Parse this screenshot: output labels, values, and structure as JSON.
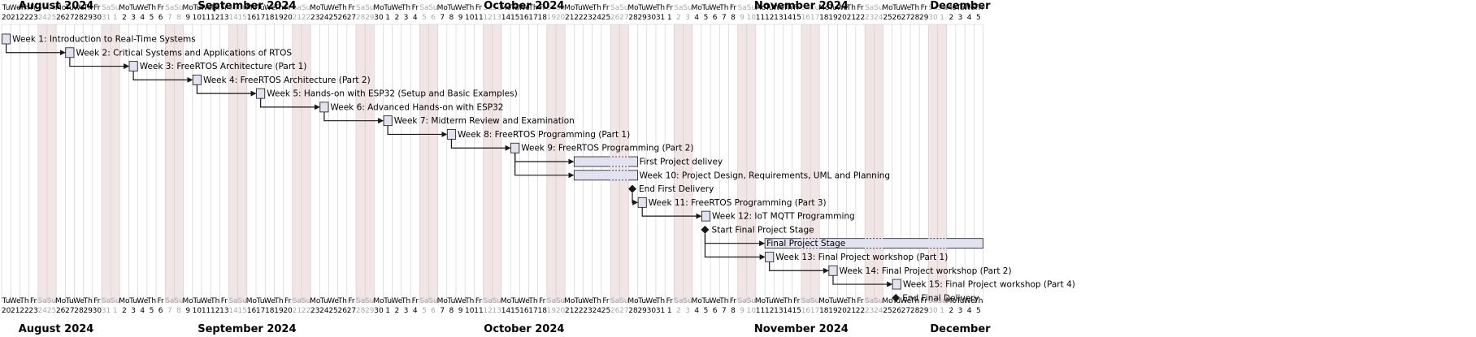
{
  "calendar": {
    "months": [
      {
        "label": "August 2024"
      },
      {
        "label": "September 2024"
      },
      {
        "label": "October 2024"
      },
      {
        "label": "November 2024"
      },
      {
        "label": "December"
      }
    ],
    "days": [
      {
        "dow": "Tu",
        "dom": "20"
      },
      {
        "dow": "We",
        "dom": "21"
      },
      {
        "dow": "Th",
        "dom": "22"
      },
      {
        "dow": "Fr",
        "dom": "23"
      },
      {
        "dow": "Sa",
        "dom": "24"
      },
      {
        "dow": "Su",
        "dom": "25"
      },
      {
        "dow": "Mo",
        "dom": "26"
      },
      {
        "dow": "Tu",
        "dom": "27"
      },
      {
        "dow": "We",
        "dom": "28"
      },
      {
        "dow": "Th",
        "dom": "29"
      },
      {
        "dow": "Fr",
        "dom": "30"
      },
      {
        "dow": "Sa",
        "dom": "31"
      },
      {
        "dow": "Su",
        "dom": "1"
      },
      {
        "dow": "Mo",
        "dom": "2"
      },
      {
        "dow": "Tu",
        "dom": "3"
      },
      {
        "dow": "We",
        "dom": "4"
      },
      {
        "dow": "Th",
        "dom": "5"
      },
      {
        "dow": "Fr",
        "dom": "6"
      },
      {
        "dow": "Sa",
        "dom": "7"
      },
      {
        "dow": "Su",
        "dom": "8"
      },
      {
        "dow": "Mo",
        "dom": "9"
      },
      {
        "dow": "Tu",
        "dom": "10"
      },
      {
        "dow": "We",
        "dom": "11"
      },
      {
        "dow": "Th",
        "dom": "12"
      },
      {
        "dow": "Fr",
        "dom": "13"
      },
      {
        "dow": "Sa",
        "dom": "14"
      },
      {
        "dow": "Su",
        "dom": "15"
      },
      {
        "dow": "Mo",
        "dom": "16"
      },
      {
        "dow": "Tu",
        "dom": "17"
      },
      {
        "dow": "We",
        "dom": "18"
      },
      {
        "dow": "Th",
        "dom": "19"
      },
      {
        "dow": "Fr",
        "dom": "20"
      },
      {
        "dow": "Sa",
        "dom": "21"
      },
      {
        "dow": "Su",
        "dom": "22"
      },
      {
        "dow": "Mo",
        "dom": "23"
      },
      {
        "dow": "Tu",
        "dom": "24"
      },
      {
        "dow": "We",
        "dom": "25"
      },
      {
        "dow": "Th",
        "dom": "26"
      },
      {
        "dow": "Fr",
        "dom": "27"
      },
      {
        "dow": "Sa",
        "dom": "28"
      },
      {
        "dow": "Su",
        "dom": "29"
      },
      {
        "dow": "Mo",
        "dom": "30"
      },
      {
        "dow": "Tu",
        "dom": "1"
      },
      {
        "dow": "We",
        "dom": "2"
      },
      {
        "dow": "Th",
        "dom": "3"
      },
      {
        "dow": "Fr",
        "dom": "4"
      },
      {
        "dow": "Sa",
        "dom": "5"
      },
      {
        "dow": "Su",
        "dom": "6"
      },
      {
        "dow": "Mo",
        "dom": "7"
      },
      {
        "dow": "Tu",
        "dom": "8"
      },
      {
        "dow": "We",
        "dom": "9"
      },
      {
        "dow": "Th",
        "dom": "10"
      },
      {
        "dow": "Fr",
        "dom": "11"
      },
      {
        "dow": "Sa",
        "dom": "12"
      },
      {
        "dow": "Su",
        "dom": "13"
      },
      {
        "dow": "Mo",
        "dom": "14"
      },
      {
        "dow": "Tu",
        "dom": "15"
      },
      {
        "dow": "We",
        "dom": "16"
      },
      {
        "dow": "Th",
        "dom": "17"
      },
      {
        "dow": "Fr",
        "dom": "18"
      },
      {
        "dow": "Sa",
        "dom": "19"
      },
      {
        "dow": "Su",
        "dom": "20"
      },
      {
        "dow": "Mo",
        "dom": "21"
      },
      {
        "dow": "Tu",
        "dom": "22"
      },
      {
        "dow": "We",
        "dom": "23"
      },
      {
        "dow": "Th",
        "dom": "24"
      },
      {
        "dow": "Fr",
        "dom": "25"
      },
      {
        "dow": "Sa",
        "dom": "26"
      },
      {
        "dow": "Su",
        "dom": "27"
      },
      {
        "dow": "Mo",
        "dom": "28"
      },
      {
        "dow": "Tu",
        "dom": "29"
      },
      {
        "dow": "We",
        "dom": "30"
      },
      {
        "dow": "Th",
        "dom": "31"
      },
      {
        "dow": "Fr",
        "dom": "1"
      },
      {
        "dow": "Sa",
        "dom": "2"
      },
      {
        "dow": "Su",
        "dom": "3"
      },
      {
        "dow": "Mo",
        "dom": "4"
      },
      {
        "dow": "Tu",
        "dom": "5"
      },
      {
        "dow": "We",
        "dom": "6"
      },
      {
        "dow": "Th",
        "dom": "7"
      },
      {
        "dow": "Fr",
        "dom": "8"
      },
      {
        "dow": "Sa",
        "dom": "9"
      },
      {
        "dow": "Su",
        "dom": "10"
      },
      {
        "dow": "Mo",
        "dom": "11"
      },
      {
        "dow": "Tu",
        "dom": "12"
      },
      {
        "dow": "We",
        "dom": "13"
      },
      {
        "dow": "Th",
        "dom": "14"
      },
      {
        "dow": "Fr",
        "dom": "15"
      },
      {
        "dow": "Sa",
        "dom": "16"
      },
      {
        "dow": "Su",
        "dom": "17"
      },
      {
        "dow": "Mo",
        "dom": "18"
      },
      {
        "dow": "Tu",
        "dom": "19"
      },
      {
        "dow": "We",
        "dom": "20"
      },
      {
        "dow": "Th",
        "dom": "21"
      },
      {
        "dow": "Fr",
        "dom": "22"
      },
      {
        "dow": "Sa",
        "dom": "23"
      },
      {
        "dow": "Su",
        "dom": "24"
      },
      {
        "dow": "Mo",
        "dom": "25"
      },
      {
        "dow": "Tu",
        "dom": "26"
      },
      {
        "dow": "We",
        "dom": "27"
      },
      {
        "dow": "Th",
        "dom": "28"
      },
      {
        "dow": "Fr",
        "dom": "29"
      },
      {
        "dow": "Sa",
        "dom": "30"
      },
      {
        "dow": "Su",
        "dom": "1"
      },
      {
        "dow": "Mo",
        "dom": "2"
      },
      {
        "dow": "Tu",
        "dom": "3"
      },
      {
        "dow": "We",
        "dom": "4"
      },
      {
        "dow": "Th",
        "dom": "5"
      }
    ]
  },
  "tasks": [
    {
      "label": "Week 1: Introduction to Real-Time Systems",
      "start": "2024-08-20",
      "end": "2024-08-20",
      "kind": "task"
    },
    {
      "label": "Week 2: Critical Systems and Applications of RTOS",
      "start": "2024-08-27",
      "end": "2024-08-27",
      "kind": "task"
    },
    {
      "label": "Week 3: FreeRTOS Architecture (Part 1)",
      "start": "2024-09-03",
      "end": "2024-09-03",
      "kind": "task"
    },
    {
      "label": "Week 4: FreeRTOS Architecture (Part 2)",
      "start": "2024-09-10",
      "end": "2024-09-10",
      "kind": "task"
    },
    {
      "label": "Week 5: Hands-on with ESP32 (Setup and Basic Examples)",
      "start": "2024-09-17",
      "end": "2024-09-17",
      "kind": "task"
    },
    {
      "label": "Week 6: Advanced Hands-on with ESP32",
      "start": "2024-09-24",
      "end": "2024-09-24",
      "kind": "task"
    },
    {
      "label": "Week 7: Midterm Review and Examination",
      "start": "2024-10-01",
      "end": "2024-10-01",
      "kind": "task"
    },
    {
      "label": "Week 8: FreeRTOS Programming (Part 1)",
      "start": "2024-10-08",
      "end": "2024-10-08",
      "kind": "task"
    },
    {
      "label": "Week 9: FreeRTOS Programming (Part 2)",
      "start": "2024-10-15",
      "end": "2024-10-15",
      "kind": "task"
    },
    {
      "label": "First Project delivey",
      "start": "2024-10-22",
      "end": "2024-10-28",
      "kind": "bar"
    },
    {
      "label": "Week 10: Project Design, Requirements, UML and Planning",
      "start": "2024-10-22",
      "end": "2024-10-28",
      "kind": "bar"
    },
    {
      "label": "End First Delivery",
      "start": "2024-10-28",
      "end": "2024-10-28",
      "kind": "milestone"
    },
    {
      "label": "Week 11: FreeRTOS Programming (Part 3)",
      "start": "2024-10-29",
      "end": "2024-10-29",
      "kind": "task"
    },
    {
      "label": "Week 12: IoT MQTT Programming",
      "start": "2024-11-05",
      "end": "2024-11-05",
      "kind": "task"
    },
    {
      "label": "Start Final Project Stage",
      "start": "2024-11-05",
      "end": "2024-11-05",
      "kind": "milestone"
    },
    {
      "label": "Final Project Stage",
      "start": "2024-11-12",
      "end": "2024-12-05",
      "kind": "bar"
    },
    {
      "label": "Week 13: Final Project workshop (Part 1)",
      "start": "2024-11-12",
      "end": "2024-11-12",
      "kind": "task"
    },
    {
      "label": "Week 14: Final Project workshop (Part 2)",
      "start": "2024-11-19",
      "end": "2024-11-19",
      "kind": "task"
    },
    {
      "label": "Week 15: Final Project workshop (Part 4)",
      "start": "2024-11-26",
      "end": "2024-11-26",
      "kind": "task"
    },
    {
      "label": "End Final Delivery",
      "start": "2024-11-26",
      "end": "2024-11-26",
      "kind": "milestone"
    }
  ],
  "dependencies": [
    {
      "from": "Week 1: Introduction to Real-Time Systems",
      "to": "Week 2: Critical Systems and Applications of RTOS"
    },
    {
      "from": "Week 2: Critical Systems and Applications of RTOS",
      "to": "Week 3: FreeRTOS Architecture (Part 1)"
    },
    {
      "from": "Week 3: FreeRTOS Architecture (Part 1)",
      "to": "Week 4: FreeRTOS Architecture (Part 2)"
    },
    {
      "from": "Week 4: FreeRTOS Architecture (Part 2)",
      "to": "Week 5: Hands-on with ESP32 (Setup and Basic Examples)"
    },
    {
      "from": "Week 5: Hands-on with ESP32 (Setup and Basic Examples)",
      "to": "Week 6: Advanced Hands-on with ESP32"
    },
    {
      "from": "Week 6: Advanced Hands-on with ESP32",
      "to": "Week 7: Midterm Review and Examination"
    },
    {
      "from": "Week 7: Midterm Review and Examination",
      "to": "Week 8: FreeRTOS Programming (Part 1)"
    },
    {
      "from": "Week 8: FreeRTOS Programming (Part 1)",
      "to": "Week 9: FreeRTOS Programming (Part 2)"
    },
    {
      "from": "Week 9: FreeRTOS Programming (Part 2)",
      "to": "First Project delivey"
    },
    {
      "from": "Week 9: FreeRTOS Programming (Part 2)",
      "to": "Week 10: Project Design, Requirements, UML and Planning"
    },
    {
      "from": "End First Delivery",
      "to": "Week 11: FreeRTOS Programming (Part 3)"
    },
    {
      "from": "Week 11: FreeRTOS Programming (Part 3)",
      "to": "Week 12: IoT MQTT Programming"
    },
    {
      "from": "Start Final Project Stage",
      "to": "Final Project Stage"
    },
    {
      "from": "Start Final Project Stage",
      "to": "Week 13: Final Project workshop (Part 1)"
    },
    {
      "from": "Week 13: Final Project workshop (Part 1)",
      "to": "Week 14: Final Project workshop (Part 2)"
    },
    {
      "from": "Week 14: Final Project workshop (Part 2)",
      "to": "Week 15: Final Project workshop (Part 4)"
    }
  ],
  "colors": {
    "weekend": "#f1e5e5",
    "weekend_text": "#aaaaaa",
    "grid": "#cccccc",
    "task_fill": "#e2e2f0",
    "task_stroke": "#181818",
    "text": "#000000"
  }
}
